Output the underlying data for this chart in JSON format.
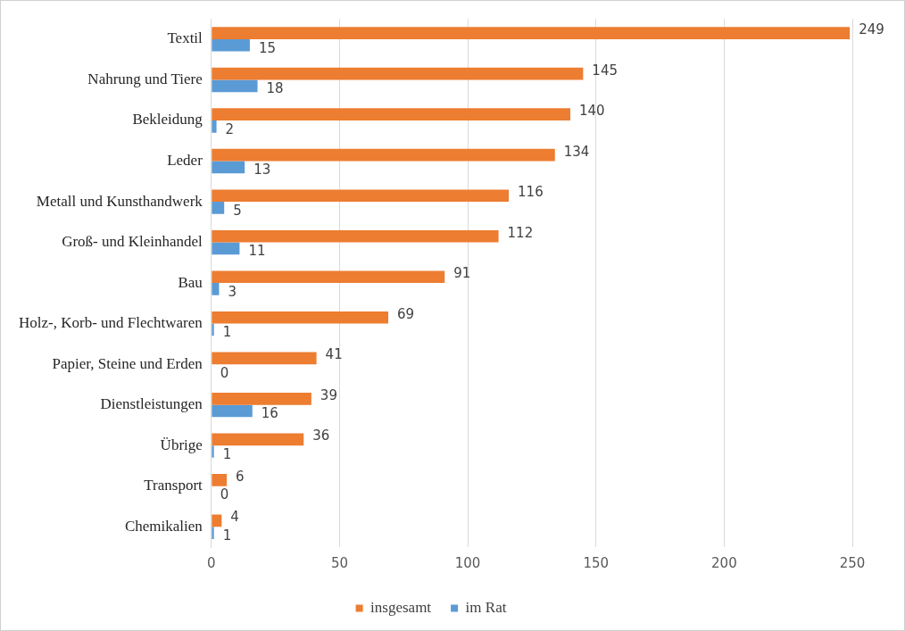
{
  "chart_data": {
    "type": "bar",
    "orientation": "horizontal",
    "categories": [
      "Textil",
      "Nahrung und Tiere",
      "Bekleidung",
      "Leder",
      "Metall und Kunsthandwerk",
      "Groß- und Kleinhandel",
      "Bau",
      "Holz-, Korb- und Flechtwaren",
      "Papier, Steine und Erden",
      "Dienstleistungen",
      "Übrige",
      "Transport",
      "Chemikalien"
    ],
    "series": [
      {
        "name": "insgesamt",
        "color": "#ed7d31",
        "values": [
          249,
          145,
          140,
          134,
          116,
          112,
          91,
          69,
          41,
          39,
          36,
          6,
          4
        ]
      },
      {
        "name": "im Rat",
        "color": "#5b9bd5",
        "values": [
          15,
          18,
          2,
          13,
          5,
          11,
          3,
          1,
          0,
          16,
          1,
          0,
          1
        ]
      }
    ],
    "xlim": [
      0,
      250
    ],
    "xticks": [
      0,
      50,
      100,
      150,
      200,
      250
    ],
    "grid": "x",
    "legend": "bottom",
    "data_labels": true
  }
}
